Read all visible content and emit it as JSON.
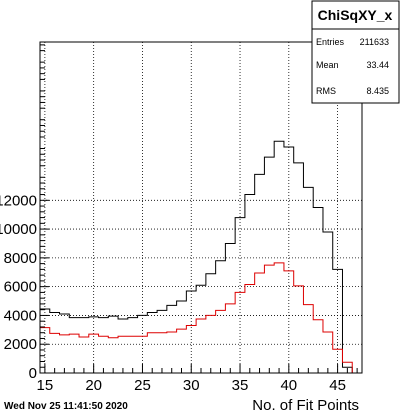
{
  "chart_data": {
    "type": "histogram",
    "xlabel": "No. of Fit Points",
    "ylabel": "",
    "xlim": [
      14.5,
      47.5
    ],
    "ylim": [
      0,
      23000
    ],
    "bin_width": 1,
    "x_ticks": [
      "15",
      "20",
      "25",
      "30",
      "35",
      "40",
      "45"
    ],
    "y_ticks": [
      "0",
      "2000",
      "4000",
      "6000",
      "8000",
      "10000",
      "12000"
    ],
    "y_tick_values": [
      0,
      2000,
      4000,
      6000,
      8000,
      10000,
      12000
    ],
    "x_tick_values": [
      15,
      20,
      25,
      30,
      35,
      40,
      45
    ],
    "grid": true,
    "series": [
      {
        "color": "#000000",
        "x": [
          15,
          16,
          17,
          18,
          19,
          20,
          21,
          22,
          23,
          24,
          25,
          26,
          27,
          28,
          29,
          30,
          31,
          32,
          33,
          34,
          35,
          36,
          37,
          38,
          39,
          40,
          41,
          42,
          43,
          44,
          45,
          46,
          47
        ],
        "values": [
          4450,
          4200,
          4100,
          3850,
          3850,
          3900,
          3850,
          3950,
          3750,
          3850,
          4000,
          4200,
          4350,
          4700,
          5000,
          5700,
          6100,
          6900,
          7800,
          9000,
          10800,
          12400,
          13800,
          15000,
          16100,
          15700,
          14600,
          12900,
          11500,
          9800,
          7200,
          400,
          0
        ]
      },
      {
        "color": "#dd0000",
        "x": [
          15,
          16,
          17,
          18,
          19,
          20,
          21,
          22,
          23,
          24,
          25,
          26,
          27,
          28,
          29,
          30,
          31,
          32,
          33,
          34,
          35,
          36,
          37,
          38,
          39,
          40,
          41,
          42,
          43,
          44,
          45,
          46,
          47
        ],
        "values": [
          3150,
          2750,
          2650,
          2700,
          2500,
          2700,
          2550,
          2450,
          2550,
          2550,
          2550,
          2800,
          2800,
          2850,
          3050,
          3300,
          3750,
          4000,
          4350,
          4800,
          5600,
          6150,
          6950,
          7500,
          7650,
          7100,
          6050,
          4750,
          3700,
          2850,
          1650,
          750,
          0
        ]
      }
    ],
    "stats_box": {
      "title": "ChiSqXY_x",
      "rows": [
        {
          "label": "Entries",
          "value": "211633"
        },
        {
          "label": "Mean",
          "value": "33.44"
        },
        {
          "label": "RMS",
          "value": "8.435"
        }
      ]
    },
    "timestamp": "Wed Nov 25 11:41:50 2020"
  }
}
